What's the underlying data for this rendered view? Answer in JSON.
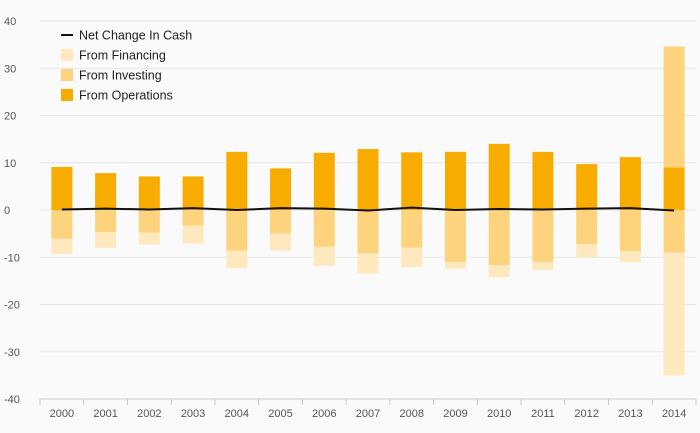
{
  "chart_data": {
    "type": "bar",
    "stacked": true,
    "categories": [
      "2000",
      "2001",
      "2002",
      "2003",
      "2004",
      "2005",
      "2006",
      "2007",
      "2008",
      "2009",
      "2010",
      "2011",
      "2012",
      "2013",
      "2014"
    ],
    "ylim": [
      -40,
      40
    ],
    "yticks": [
      -40,
      -30,
      -20,
      -10,
      0,
      10,
      20,
      30,
      40
    ],
    "grid": true,
    "legend_position": "top-left",
    "series": [
      {
        "name": "Net Change In Cash",
        "kind": "line",
        "color": "#111111",
        "values": [
          0.1,
          0.3,
          0.1,
          0.4,
          0.0,
          0.4,
          0.3,
          -0.1,
          0.5,
          0.0,
          0.2,
          0.1,
          0.3,
          0.4,
          -0.1
        ]
      },
      {
        "name": "From Financing",
        "kind": "bar",
        "color": "#fde9bd",
        "values": [
          -3.2,
          -3.3,
          -2.5,
          -3.8,
          -3.7,
          -3.6,
          -4.0,
          -4.2,
          -4.1,
          -1.4,
          -2.5,
          -1.7,
          -2.8,
          -2.3,
          -26.0
        ]
      },
      {
        "name": "From Investing",
        "kind": "bar",
        "color": "#fdd37e",
        "values": [
          -6.1,
          -4.7,
          -4.8,
          -3.3,
          -8.6,
          -5.0,
          -7.8,
          -9.2,
          -8.0,
          -11.0,
          -11.7,
          -11.0,
          -7.2,
          -8.7,
          -9.0
        ]
      },
      {
        "name": "From Operations",
        "kind": "bar",
        "color": "#f9ac00",
        "values": [
          9.1,
          7.8,
          7.1,
          7.1,
          12.3,
          8.8,
          12.1,
          12.9,
          12.2,
          12.3,
          14.0,
          12.3,
          9.7,
          11.2,
          9.0
        ],
        "extra_positive": [
          0,
          0,
          0,
          0,
          0,
          0,
          0,
          0,
          0,
          0,
          0,
          0,
          0,
          0,
          25.6
        ]
      }
    ],
    "legend": [
      {
        "label": "Net Change In Cash",
        "style": "line",
        "color": "#111111"
      },
      {
        "label": "From Financing",
        "style": "box",
        "color": "#fde9bd"
      },
      {
        "label": "From Investing",
        "style": "box",
        "color": "#fdd37e"
      },
      {
        "label": "From Operations",
        "style": "box",
        "color": "#f9ac00"
      }
    ]
  }
}
